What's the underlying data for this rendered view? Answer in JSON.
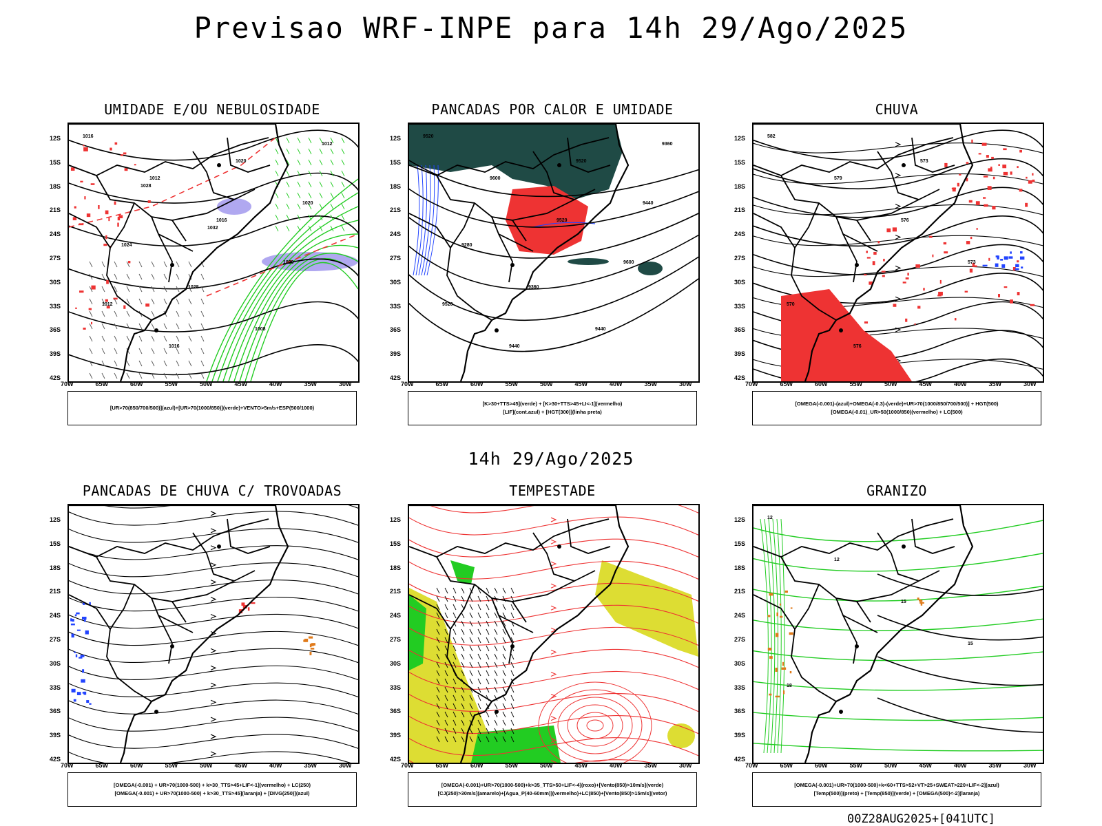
{
  "title": "Previsao WRF-INPE  para 14h 29/Ago/2025",
  "subtitle": "14h 29/Ago/2025",
  "footer": "00Z28AUG2025+[041UTC]",
  "lat_labels": [
    "12S",
    "15S",
    "18S",
    "21S",
    "24S",
    "27S",
    "30S",
    "33S",
    "36S",
    "39S",
    "42S"
  ],
  "lon_labels": [
    "70W",
    "65W",
    "60W",
    "55W",
    "50W",
    "45W",
    "40W",
    "35W",
    "30W"
  ],
  "colors": {
    "humidity_blue": "#b0a8f0",
    "green": "#22cc22",
    "red": "#ee3333",
    "dark_teal": "#1f4a45",
    "blue": "#2244ff",
    "yellow": "#dddd33",
    "orange": "#e07a1a"
  },
  "panels": [
    {
      "id": "umidade",
      "title": "UMIDADE E/OU NEBULOSIDADE",
      "legend": [
        "[UR>70(850/700/500)](azul)+[UR>70(1000/850)](verde)+VENTO>5m/s+ESP(500/1000)"
      ],
      "contour_labels": [
        "1016",
        "1012",
        "1016",
        "1020",
        "1012",
        "1016",
        "1020",
        "1020",
        "1024",
        "1028",
        "1008",
        "1012",
        "1028",
        "1032"
      ]
    },
    {
      "id": "pancadas",
      "title": "PANCADAS POR CALOR E UMIDADE",
      "legend": [
        "[K>30+TTS>45](verde) + [K>30+TTS>45+LI<-1](vermelho)",
        "[LIF](cont.azul) + [HGT(300)](linha preta)"
      ],
      "contour_labels": [
        "9520",
        "9600",
        "9520",
        "9600",
        "9520",
        "9440",
        "9520",
        "9440",
        "9280",
        "9360",
        "9440",
        "9360"
      ]
    },
    {
      "id": "chuva",
      "title": "CHUVA",
      "legend": [
        "[OMEGA(-0.001)-(azul)+OMEGA(-0.3)-(verde)+UR>70(1000/850/700/500)] + HGT(500)",
        "[OMEGA(-0.01)_UR>50(1000/850)(vermelho) + LC(500)"
      ],
      "contour_labels": [
        "582",
        "579",
        "576",
        "573",
        "570",
        "576",
        "573"
      ]
    },
    {
      "id": "trovoadas",
      "title": "PANCADAS DE CHUVA C/ TROVOADAS",
      "legend": [
        "[OMEGA(-0.001) + UR>70(1000-500) + k>30_TTS>45+LIF<-1](vermelho) + LC(250)",
        "[OMEGA(-0.001) + UR>70(1000-500) + k>30_TTS>45](laranja) + [DIVG(250)](azul)"
      ],
      "contour_labels": []
    },
    {
      "id": "tempestade",
      "title": "TEMPESTADE",
      "legend": [
        "[OMEGA(-0.001)+UR>70(1000-500)+k>35_TTS>50+LIF<-4](roxo)+[Vento(850)>10m/s](verde)",
        "[CJ(250)>30m/s](amarelo)+[Agua_P(40-60mm)](vermelho)+LC(850)+[Vento(850)>15m/s](vetor)"
      ],
      "contour_labels": []
    },
    {
      "id": "granizo",
      "title": "GRANIZO",
      "legend": [
        "[OMEGA(-0.001)+UR>70(1000-500)+k<60+TTS>52+VT>25+SWEAT>220+LIF<-2](azul)",
        "[Temp(500)](preto) + [Temp(850)](verde) + [OMEGA(500)<-2](laranja)"
      ],
      "contour_labels": [
        "12",
        "12",
        "15",
        "15",
        "18"
      ]
    }
  ]
}
